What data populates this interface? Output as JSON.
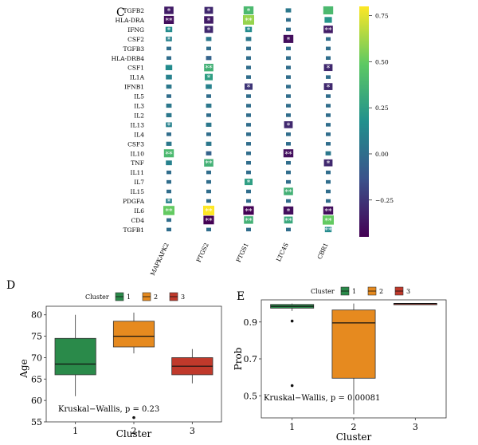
{
  "panels": {
    "heatmap": {
      "label": "C",
      "genes": [
        "TGFB2",
        "HLA-DRA",
        "IFNG",
        "CSF2",
        "TGFB3",
        "HLA-DRB4",
        "CSF1",
        "IL1A",
        "IFNB1",
        "IL5",
        "IL3",
        "IL2",
        "IL13",
        "IL4",
        "CSF3",
        "IL10",
        "TNF",
        "IL11",
        "IL7",
        "IL15",
        "PDGFA",
        "IL6",
        "CD4",
        "TGFB1"
      ],
      "columns": [
        "MAPKAPK2",
        "PTGS2",
        "PTGS1",
        "LTC4S",
        "CBR1"
      ],
      "values": [
        [
          -0.35,
          -0.3,
          0.4,
          0.05,
          0.4
        ],
        [
          -0.4,
          -0.35,
          0.6,
          0.0,
          0.2
        ],
        [
          0.15,
          -0.3,
          0.15,
          0.0,
          -0.35
        ],
        [
          0.1,
          0.05,
          0.05,
          -0.4,
          0.0
        ],
        [
          0.0,
          0.0,
          0.0,
          0.0,
          0.0
        ],
        [
          0.0,
          -0.05,
          0.0,
          0.0,
          0.0
        ],
        [
          0.15,
          0.35,
          0.0,
          0.0,
          -0.3
        ],
        [
          0.1,
          0.25,
          0.0,
          0.0,
          0.0
        ],
        [
          0.05,
          0.1,
          -0.25,
          0.0,
          -0.3
        ],
        [
          0.0,
          0.0,
          0.0,
          0.0,
          0.0
        ],
        [
          0.05,
          0.05,
          0.0,
          0.0,
          0.0
        ],
        [
          0.05,
          0.0,
          0.0,
          0.0,
          0.0
        ],
        [
          0.1,
          0.05,
          0.0,
          -0.3,
          0.0
        ],
        [
          0.0,
          0.0,
          0.0,
          0.0,
          0.0
        ],
        [
          0.05,
          0.05,
          0.0,
          0.0,
          0.0
        ],
        [
          0.4,
          -0.05,
          0.0,
          -0.4,
          0.05
        ],
        [
          0.1,
          0.35,
          0.0,
          0.0,
          -0.3
        ],
        [
          0.0,
          0.0,
          0.0,
          0.0,
          0.0
        ],
        [
          0.0,
          0.0,
          0.25,
          0.0,
          0.0
        ],
        [
          0.0,
          0.0,
          0.0,
          0.35,
          0.0
        ],
        [
          0.1,
          0.0,
          0.0,
          0.0,
          0.0
        ],
        [
          0.5,
          0.8,
          -0.45,
          -0.4,
          -0.4
        ],
        [
          0.0,
          -0.45,
          0.35,
          0.3,
          0.5
        ],
        [
          0.0,
          0.0,
          0.0,
          0.0,
          0.15
        ]
      ],
      "stars": [
        [
          "*",
          "*",
          "*",
          "",
          ""
        ],
        [
          "**",
          "*",
          "**",
          "",
          ""
        ],
        [
          "*",
          "*",
          "*",
          "",
          "**"
        ],
        [
          "*",
          "",
          "",
          "*",
          ""
        ],
        [
          "",
          "",
          "",
          "",
          ""
        ],
        [
          "",
          "",
          "",
          "",
          ""
        ],
        [
          "",
          "**",
          "",
          "",
          "*"
        ],
        [
          "",
          "*",
          "",
          "",
          ""
        ],
        [
          "",
          "",
          "*",
          "",
          "*"
        ],
        [
          "",
          "",
          "",
          "",
          ""
        ],
        [
          "",
          "",
          "",
          "",
          ""
        ],
        [
          "",
          "",
          "",
          "",
          ""
        ],
        [
          "*",
          "",
          "",
          "*",
          ""
        ],
        [
          "",
          "",
          "",
          "",
          ""
        ],
        [
          "",
          "",
          "",
          "",
          ""
        ],
        [
          "**",
          "",
          "",
          "**",
          ""
        ],
        [
          "",
          "**",
          "",
          "",
          "*"
        ],
        [
          "",
          "",
          "",
          "",
          ""
        ],
        [
          "",
          "",
          "*",
          "",
          ""
        ],
        [
          "",
          "",
          "",
          "**",
          ""
        ],
        [
          "*",
          "",
          "",
          "",
          ""
        ],
        [
          "**",
          "**",
          "**",
          "*",
          "**"
        ],
        [
          "",
          "**",
          "**",
          "**",
          "**"
        ],
        [
          "",
          "",
          "",
          "",
          "**"
        ]
      ],
      "colorbar": {
        "min": -0.45,
        "max": 0.8,
        "ticks": [
          "0.75",
          "0.50",
          "0.25",
          "0.00",
          "−0.25"
        ],
        "tick_values": [
          0.75,
          0.5,
          0.25,
          0.0,
          -0.25
        ]
      }
    },
    "age": {
      "label": "D",
      "legend_title": "Cluster",
      "clusters": [
        "1",
        "2",
        "3"
      ],
      "colors": [
        "#2a8a4a",
        "#e68a1f",
        "#c0392b"
      ],
      "xlabel": "Cluster",
      "ylabel": "Age",
      "yticks": [
        "55",
        "60",
        "65",
        "70",
        "75",
        "80"
      ],
      "ylim": [
        55,
        82
      ],
      "annotation": "Kruskal−Wallis, p = 0.23"
    },
    "prob": {
      "label": "E",
      "legend_title": "Cluster",
      "clusters": [
        "1",
        "2",
        "3"
      ],
      "colors": [
        "#2a8a4a",
        "#e68a1f",
        "#c0392b"
      ],
      "xlabel": "Cluster",
      "ylabel": "Prob",
      "yticks": [
        "0.5",
        "0.7",
        "0.9"
      ],
      "ylim": [
        0.38,
        1.02
      ],
      "annotation": "Kruskal−Wallis, p = 0.00081"
    }
  },
  "chart_data": [
    {
      "type": "heatmap",
      "title": "",
      "x": [
        "MAPKAPK2",
        "PTGS2",
        "PTGS1",
        "LTC4S",
        "CBR1"
      ],
      "y": [
        "TGFB2",
        "HLA-DRA",
        "IFNG",
        "CSF2",
        "TGFB3",
        "HLA-DRB4",
        "CSF1",
        "IL1A",
        "IFNB1",
        "IL5",
        "IL3",
        "IL2",
        "IL13",
        "IL4",
        "CSF3",
        "IL10",
        "TNF",
        "IL11",
        "IL7",
        "IL15",
        "PDGFA",
        "IL6",
        "CD4",
        "TGFB1"
      ],
      "color_range": [
        -0.45,
        0.8
      ]
    },
    {
      "type": "box",
      "title": "",
      "categories": [
        "1",
        "2",
        "3"
      ],
      "xlabel": "Cluster",
      "ylabel": "Age",
      "ylim": [
        55,
        82
      ],
      "series": [
        {
          "name": "1",
          "min": 61,
          "q1": 66,
          "median": 68.5,
          "q3": 74.5,
          "max": 80,
          "outliers": []
        },
        {
          "name": "2",
          "min": 71,
          "q1": 72.5,
          "median": 75,
          "q3": 78.5,
          "max": 80.5,
          "outliers": [
            56
          ]
        },
        {
          "name": "3",
          "min": 64,
          "q1": 66,
          "median": 68,
          "q3": 70,
          "max": 72,
          "outliers": []
        }
      ]
    },
    {
      "type": "box",
      "title": "",
      "categories": [
        "1",
        "2",
        "3"
      ],
      "xlabel": "Cluster",
      "ylabel": "Prob",
      "ylim": [
        0.38,
        1.02
      ],
      "series": [
        {
          "name": "1",
          "min": 0.96,
          "q1": 0.975,
          "median": 0.985,
          "q3": 0.995,
          "max": 1.0,
          "outliers": [
            0.905,
            0.555
          ]
        },
        {
          "name": "2",
          "min": 0.4,
          "q1": 0.595,
          "median": 0.895,
          "q3": 0.965,
          "max": 1.0,
          "outliers": []
        },
        {
          "name": "3",
          "min": 1.0,
          "q1": 1.0,
          "median": 1.0,
          "q3": 1.0,
          "max": 1.0,
          "outliers": []
        }
      ]
    }
  ]
}
